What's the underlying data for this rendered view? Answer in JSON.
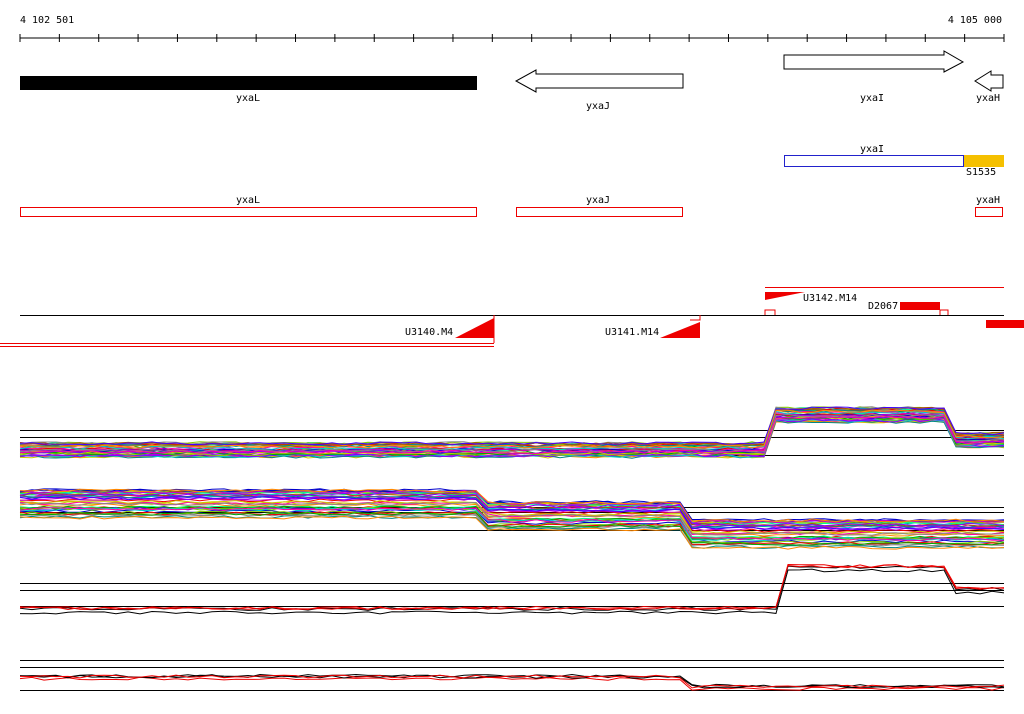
{
  "ruler": {
    "start": "4 102 501",
    "end": "4 105 000"
  },
  "genes": [
    "yxaL",
    "yxaJ",
    "yxaI",
    "yxaH"
  ],
  "operons": {
    "gene": "yxaI",
    "feature": "S1535"
  },
  "transcripts": [
    "yxaL",
    "yxaJ",
    "yxaH"
  ],
  "segments": {
    "upper": [
      "U3142.M14",
      "D2067"
    ],
    "lower": [
      "U3140.M4",
      "U3141.M14"
    ]
  }
}
